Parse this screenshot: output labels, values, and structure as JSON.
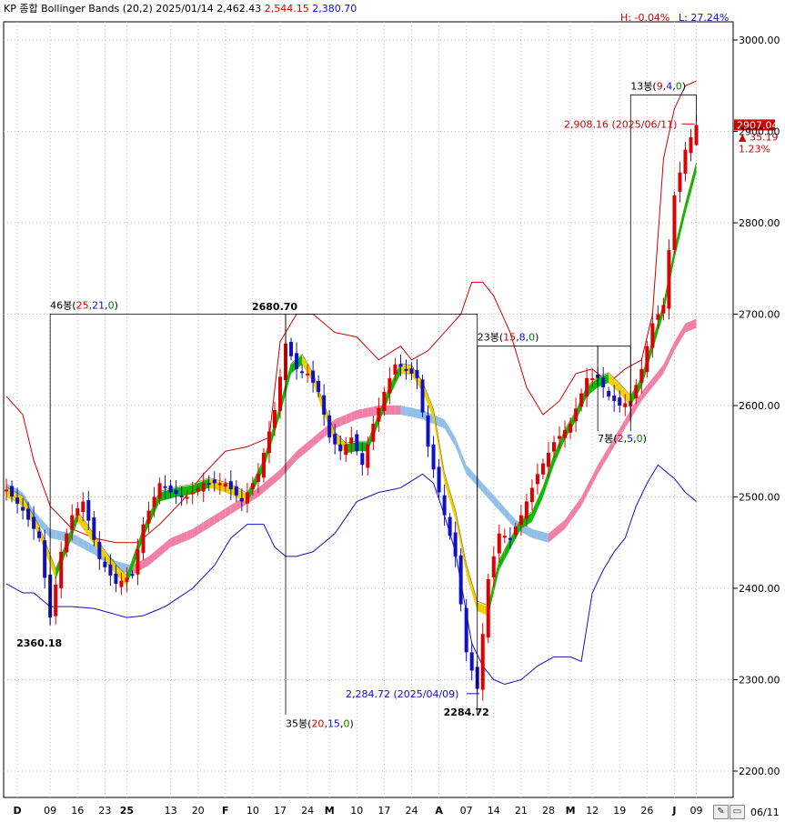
{
  "header": {
    "title": "KP 종합 Bollinger Bands",
    "params": "(20,2)",
    "date": "2025/01/14",
    "value": "2,462.43",
    "upper": "2,544.15",
    "lower": "2,380.70",
    "high_pct": "H: -0.04%",
    "low_pct": "L: 27.24%"
  },
  "colors": {
    "up": "#e00000",
    "down": "#1010c0",
    "upper_band": "#d00000",
    "lower_band": "#1010c0",
    "middle_up": "#f080a8",
    "middle_down": "#90c0e8",
    "fast_up": "#00c000",
    "fast_down": "#f0d000",
    "annotation": "#000000"
  },
  "toolbar": {
    "date_label": "06/11",
    "pencil_icon": "pencil-icon",
    "ruler_icon": "ruler-icon"
  },
  "chart_data": {
    "type": "candlestick",
    "title": "KP 종합 Bollinger Bands",
    "y_axis": {
      "side": "right",
      "ticks": [
        "3000.00",
        "2900.00",
        "2800.00",
        "2700.00",
        "2600.00",
        "2500.00",
        "2400.00",
        "2300.00",
        "2200.00"
      ],
      "ylim": [
        2170,
        3040
      ]
    },
    "x_axis": {
      "ticks": [
        {
          "label": "D",
          "index": 2,
          "bold": true
        },
        {
          "label": "09",
          "index": 8
        },
        {
          "label": "16",
          "index": 13
        },
        {
          "label": "23",
          "index": 18
        },
        {
          "label": "25",
          "index": 22,
          "bold": true
        },
        {
          "label": "13",
          "index": 30
        },
        {
          "label": "20",
          "index": 35
        },
        {
          "label": "F",
          "index": 40,
          "bold": true
        },
        {
          "label": "10",
          "index": 45
        },
        {
          "label": "17",
          "index": 50
        },
        {
          "label": "24",
          "index": 55
        },
        {
          "label": "M",
          "index": 59,
          "bold": true
        },
        {
          "label": "10",
          "index": 64
        },
        {
          "label": "17",
          "index": 69
        },
        {
          "label": "24",
          "index": 74
        },
        {
          "label": "A",
          "index": 79,
          "bold": true
        },
        {
          "label": "07",
          "index": 84
        },
        {
          "label": "14",
          "index": 89
        },
        {
          "label": "21",
          "index": 94
        },
        {
          "label": "28",
          "index": 99
        },
        {
          "label": "M",
          "index": 103,
          "bold": true
        },
        {
          "label": "12",
          "index": 107
        },
        {
          "label": "19",
          "index": 112
        },
        {
          "label": "26",
          "index": 117
        },
        {
          "label": "J",
          "index": 122,
          "bold": true
        },
        {
          "label": "09",
          "index": 126
        }
      ]
    },
    "anchors": {
      "close": [
        [
          0,
          2508
        ],
        [
          3,
          2485
        ],
        [
          6,
          2455
        ],
        [
          8,
          2368
        ],
        [
          10,
          2440
        ],
        [
          12,
          2480
        ],
        [
          14,
          2495
        ],
        [
          17,
          2432
        ],
        [
          20,
          2405
        ],
        [
          23,
          2415
        ],
        [
          25,
          2470
        ],
        [
          28,
          2515
        ],
        [
          30,
          2505
        ],
        [
          33,
          2500
        ],
        [
          36,
          2515
        ],
        [
          40,
          2515
        ],
        [
          43,
          2495
        ],
        [
          46,
          2525
        ],
        [
          49,
          2595
        ],
        [
          51,
          2668
        ],
        [
          53,
          2640
        ],
        [
          55,
          2635
        ],
        [
          57,
          2615
        ],
        [
          59,
          2565
        ],
        [
          61,
          2550
        ],
        [
          63,
          2565
        ],
        [
          65,
          2535
        ],
        [
          67,
          2580
        ],
        [
          69,
          2615
        ],
        [
          71,
          2645
        ],
        [
          73,
          2640
        ],
        [
          75,
          2630
        ],
        [
          77,
          2555
        ],
        [
          80,
          2480
        ],
        [
          82,
          2435
        ],
        [
          84,
          2330
        ],
        [
          86,
          2290
        ],
        [
          88,
          2410
        ],
        [
          90,
          2460
        ],
        [
          92,
          2455
        ],
        [
          94,
          2480
        ],
        [
          97,
          2525
        ],
        [
          100,
          2560
        ],
        [
          103,
          2580
        ],
        [
          106,
          2630
        ],
        [
          108,
          2630
        ],
        [
          110,
          2610
        ],
        [
          112,
          2600
        ],
        [
          114,
          2605
        ],
        [
          116,
          2640
        ],
        [
          118,
          2690
        ],
        [
          120,
          2710
        ],
        [
          122,
          2830
        ],
        [
          124,
          2880
        ],
        [
          126,
          2907
        ]
      ],
      "upper": [
        [
          0,
          2610
        ],
        [
          3,
          2590
        ],
        [
          5,
          2540
        ],
        [
          8,
          2490
        ],
        [
          12,
          2465
        ],
        [
          16,
          2455
        ],
        [
          20,
          2450
        ],
        [
          24,
          2450
        ],
        [
          28,
          2470
        ],
        [
          32,
          2495
        ],
        [
          36,
          2525
        ],
        [
          40,
          2550
        ],
        [
          44,
          2555
        ],
        [
          48,
          2565
        ],
        [
          50,
          2670
        ],
        [
          53,
          2700
        ],
        [
          56,
          2700
        ],
        [
          60,
          2680
        ],
        [
          64,
          2675
        ],
        [
          68,
          2650
        ],
        [
          72,
          2665
        ],
        [
          74,
          2650
        ],
        [
          77,
          2660
        ],
        [
          80,
          2680
        ],
        [
          83,
          2700
        ],
        [
          85,
          2735
        ],
        [
          87,
          2735
        ],
        [
          89,
          2720
        ],
        [
          92,
          2680
        ],
        [
          95,
          2620
        ],
        [
          98,
          2590
        ],
        [
          101,
          2605
        ],
        [
          104,
          2635
        ],
        [
          107,
          2640
        ],
        [
          110,
          2625
        ],
        [
          113,
          2640
        ],
        [
          116,
          2650
        ],
        [
          118,
          2700
        ],
        [
          120,
          2870
        ],
        [
          122,
          2925
        ],
        [
          124,
          2950
        ],
        [
          126,
          2955
        ]
      ],
      "lower": [
        [
          0,
          2405
        ],
        [
          3,
          2395
        ],
        [
          5,
          2395
        ],
        [
          8,
          2380
        ],
        [
          12,
          2380
        ],
        [
          16,
          2378
        ],
        [
          19,
          2373
        ],
        [
          22,
          2368
        ],
        [
          25,
          2370
        ],
        [
          29,
          2380
        ],
        [
          34,
          2400
        ],
        [
          38,
          2425
        ],
        [
          41,
          2455
        ],
        [
          44,
          2470
        ],
        [
          47,
          2470
        ],
        [
          49,
          2445
        ],
        [
          51,
          2435
        ],
        [
          53,
          2435
        ],
        [
          56,
          2440
        ],
        [
          60,
          2460
        ],
        [
          64,
          2495
        ],
        [
          68,
          2505
        ],
        [
          72,
          2510
        ],
        [
          76,
          2525
        ],
        [
          78,
          2515
        ],
        [
          80,
          2480
        ],
        [
          82,
          2440
        ],
        [
          85,
          2340
        ],
        [
          87,
          2315
        ],
        [
          89,
          2300
        ],
        [
          91,
          2295
        ],
        [
          94,
          2300
        ],
        [
          97,
          2315
        ],
        [
          100,
          2325
        ],
        [
          103,
          2325
        ],
        [
          105,
          2320
        ],
        [
          107,
          2395
        ],
        [
          109,
          2420
        ],
        [
          111,
          2440
        ],
        [
          113,
          2455
        ],
        [
          115,
          2490
        ],
        [
          117,
          2515
        ],
        [
          119,
          2535
        ],
        [
          120,
          2530
        ],
        [
          122,
          2520
        ],
        [
          124,
          2505
        ],
        [
          126,
          2495
        ]
      ],
      "middle": [
        [
          0,
          2510
        ],
        [
          3,
          2500
        ],
        [
          5,
          2480
        ],
        [
          8,
          2460
        ],
        [
          12,
          2455
        ],
        [
          16,
          2442
        ],
        [
          20,
          2425
        ],
        [
          23,
          2420
        ],
        [
          26,
          2430
        ],
        [
          30,
          2450
        ],
        [
          34,
          2460
        ],
        [
          38,
          2475
        ],
        [
          42,
          2490
        ],
        [
          46,
          2505
        ],
        [
          50,
          2525
        ],
        [
          53,
          2545
        ],
        [
          56,
          2560
        ],
        [
          60,
          2580
        ],
        [
          64,
          2590
        ],
        [
          68,
          2595
        ],
        [
          72,
          2595
        ],
        [
          76,
          2590
        ],
        [
          80,
          2580
        ],
        [
          82,
          2560
        ],
        [
          84,
          2530
        ],
        [
          87,
          2510
        ],
        [
          90,
          2490
        ],
        [
          93,
          2470
        ],
        [
          96,
          2460
        ],
        [
          99,
          2455
        ],
        [
          102,
          2470
        ],
        [
          105,
          2495
        ],
        [
          108,
          2530
        ],
        [
          111,
          2560
        ],
        [
          114,
          2590
        ],
        [
          116,
          2610
        ],
        [
          118,
          2625
        ],
        [
          120,
          2640
        ],
        [
          122,
          2665
        ],
        [
          124,
          2685
        ],
        [
          126,
          2690
        ]
      ],
      "fast": [
        [
          0,
          2505
        ],
        [
          3,
          2495
        ],
        [
          6,
          2462
        ],
        [
          9,
          2415
        ],
        [
          11,
          2445
        ],
        [
          13,
          2478
        ],
        [
          15,
          2462
        ],
        [
          18,
          2435
        ],
        [
          20,
          2420
        ],
        [
          22,
          2408
        ],
        [
          25,
          2460
        ],
        [
          28,
          2500
        ],
        [
          31,
          2505
        ],
        [
          34,
          2508
        ],
        [
          37,
          2515
        ],
        [
          40,
          2510
        ],
        [
          42,
          2505
        ],
        [
          44,
          2498
        ],
        [
          47,
          2535
        ],
        [
          50,
          2595
        ],
        [
          52,
          2640
        ],
        [
          54,
          2650
        ],
        [
          56,
          2630
        ],
        [
          58,
          2595
        ],
        [
          60,
          2565
        ],
        [
          62,
          2553
        ],
        [
          64,
          2555
        ],
        [
          66,
          2555
        ],
        [
          68,
          2585
        ],
        [
          70,
          2615
        ],
        [
          72,
          2640
        ],
        [
          74,
          2638
        ],
        [
          76,
          2620
        ],
        [
          78,
          2590
        ],
        [
          80,
          2520
        ],
        [
          82,
          2480
        ],
        [
          84,
          2420
        ],
        [
          86,
          2380
        ],
        [
          88,
          2375
        ],
        [
          90,
          2425
        ],
        [
          92,
          2448
        ],
        [
          94,
          2470
        ],
        [
          96,
          2478
        ],
        [
          98,
          2505
        ],
        [
          100,
          2540
        ],
        [
          102,
          2568
        ],
        [
          104,
          2588
        ],
        [
          106,
          2615
        ],
        [
          108,
          2625
        ],
        [
          110,
          2630
        ],
        [
          112,
          2618
        ],
        [
          114,
          2605
        ],
        [
          116,
          2625
        ],
        [
          118,
          2665
        ],
        [
          120,
          2705
        ],
        [
          122,
          2765
        ],
        [
          124,
          2815
        ],
        [
          126,
          2860
        ]
      ]
    },
    "highlights": [
      {
        "type": "high",
        "label": "2680.70",
        "index": 51,
        "value": 2680.7
      },
      {
        "type": "low",
        "label": "2360.18",
        "index": 8,
        "value": 2360.18
      },
      {
        "type": "low",
        "label": "2284.72",
        "index": 86,
        "value": 2284.72
      }
    ],
    "annotations": [
      {
        "label": "46봉",
        "paren_open": "(",
        "n1": "25",
        "sep": ",",
        "n2": "21",
        "sep2": ",",
        "n3": "0",
        "paren_close": ")",
        "from": 8,
        "to": 51
      },
      {
        "label": "35봉",
        "paren_open": "(",
        "n1": "20",
        "sep": ",",
        "n2": "15",
        "sep2": ",",
        "n3": "0",
        "paren_close": ")",
        "from": 51,
        "to": 86
      },
      {
        "label": "23봉",
        "paren_open": "(",
        "n1": "15",
        "sep": ",",
        "n2": "8",
        "sep2": ",",
        "n3": "0",
        "paren_close": ")",
        "from": 86,
        "to": 108
      },
      {
        "label": "7봉",
        "paren_open": "(",
        "n1": "2",
        "sep": ",",
        "n2": "5",
        "sep2": ",",
        "n3": "0",
        "paren_close": ")",
        "from": 108,
        "to": 114
      },
      {
        "label": "13봉",
        "paren_open": "(",
        "n1": "9",
        "sep": ",",
        "n2": "4",
        "sep2": ",",
        "n3": "0",
        "paren_close": ")",
        "from": 114,
        "to": 126
      }
    ],
    "markers": [
      {
        "label": "2,908.16 (2025/06/11)",
        "value": 2908.16,
        "color": "#d00000"
      },
      {
        "label": "2,284.72 (2025/04/09)",
        "value": 2284.72,
        "color": "#1010c0"
      }
    ],
    "last": {
      "price": "2907.04",
      "change": "35.19",
      "pct": "1.23%"
    }
  }
}
